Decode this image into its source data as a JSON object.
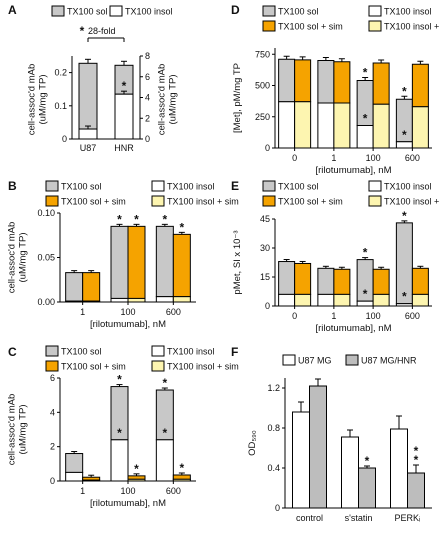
{
  "colors": {
    "sol": "#c8c8c8",
    "insol": "#ffffff",
    "sol_sim": "#f5a300",
    "insol_sim": "#fdf5b0",
    "u87": "#ffffff",
    "hnr": "#bdbdbd"
  },
  "chart_data": [
    {
      "panel": "A",
      "type": "bar",
      "stacked": true,
      "legend": [
        "TX100 sol",
        "TX100 insol"
      ],
      "categories": [
        "U87",
        "HNR"
      ],
      "ylabel": "cell-assoc'd mAb\n(uM/mg TP)",
      "ylim": [
        0,
        0.25
      ],
      "yticks": [
        "0",
        "0.1",
        "0.2"
      ],
      "y2label": "cell-assoc'd mAb\n(uM/mg TP)",
      "y2lim": [
        0,
        8
      ],
      "y2ticks": [
        "0",
        "2",
        "4",
        "6",
        "8"
      ],
      "annotation": "28-fold",
      "bars": [
        {
          "category": "U87",
          "insol": 0.03,
          "total": 0.228
        },
        {
          "category": "HNR",
          "insol": 0.135,
          "total": 0.222,
          "star": "*"
        }
      ]
    },
    {
      "panel": "B",
      "type": "bar",
      "stacked": true,
      "legend": [
        "TX100 sol",
        "TX100 insol",
        "TX100 sol + sim",
        "TX100 insol + sim"
      ],
      "categories": [
        "1",
        "100",
        "600"
      ],
      "xlabel": "[rilotumumab], nM",
      "ylabel": "cell-assoc'd mAb\n(uM/mg TP)",
      "ylim": [
        0,
        0.1
      ],
      "yticks": [
        "0.00",
        "0.05",
        "0.10"
      ],
      "groups": [
        {
          "category": "1",
          "ctrl": {
            "insol": 0.001,
            "total": 0.033
          },
          "sim": {
            "insol": 0.001,
            "total": 0.033
          }
        },
        {
          "category": "100",
          "ctrl": {
            "insol": 0.004,
            "total": 0.085,
            "star": "*"
          },
          "sim": {
            "insol": 0.004,
            "total": 0.085,
            "star": "*"
          }
        },
        {
          "category": "600",
          "ctrl": {
            "insol": 0.006,
            "total": 0.085,
            "star": "*"
          },
          "sim": {
            "insol": 0.006,
            "total": 0.076,
            "star": "*"
          }
        }
      ]
    },
    {
      "panel": "C",
      "type": "bar",
      "stacked": true,
      "legend": [
        "TX100 sol",
        "TX100 insol",
        "TX100 sol + sim",
        "TX100 insol + sim"
      ],
      "categories": [
        "1",
        "100",
        "600"
      ],
      "xlabel": "[rilotumumab], nM",
      "ylabel": "cell-assoc'd mAb\n(uM/mg TP)",
      "ylim": [
        0,
        6
      ],
      "yticks": [
        "0",
        "2",
        "4",
        "6"
      ],
      "groups": [
        {
          "category": "1",
          "ctrl": {
            "insol": 0.5,
            "total": 1.6
          },
          "sim": {
            "insol": 0.05,
            "total": 0.22
          }
        },
        {
          "category": "100",
          "ctrl": {
            "insol": 2.4,
            "total": 5.5,
            "star": "*",
            "star_in": "*"
          },
          "sim": {
            "insol": 0.1,
            "total": 0.3,
            "star": "*"
          }
        },
        {
          "category": "600",
          "ctrl": {
            "insol": 2.4,
            "total": 5.3,
            "star": "*",
            "star_in": "*"
          },
          "sim": {
            "insol": 0.1,
            "total": 0.35,
            "star": "*"
          }
        }
      ]
    },
    {
      "panel": "D",
      "type": "bar",
      "stacked": true,
      "legend": [
        "TX100 sol",
        "TX100 insol",
        "TX100 sol + sim",
        "TX100 insol + sim"
      ],
      "categories": [
        "0",
        "1",
        "100",
        "600"
      ],
      "xlabel": "[rilotumumab], nM",
      "ylabel": "[Met], pM/mg TP",
      "ylim": [
        0,
        800
      ],
      "yticks": [
        "0",
        "250",
        "500",
        "750"
      ],
      "groups": [
        {
          "category": "0",
          "ctrl": {
            "insol": 370,
            "total": 710
          },
          "sim": {
            "insol": 370,
            "total": 705
          }
        },
        {
          "category": "1",
          "ctrl": {
            "insol": 360,
            "total": 700
          },
          "sim": {
            "insol": 360,
            "total": 690
          }
        },
        {
          "category": "100",
          "ctrl": {
            "insol": 180,
            "total": 540,
            "star": "*",
            "star_in": "*"
          },
          "sim": {
            "insol": 350,
            "total": 680
          }
        },
        {
          "category": "600",
          "ctrl": {
            "insol": 50,
            "total": 390,
            "star": "*",
            "star_in": "*"
          },
          "sim": {
            "insol": 330,
            "total": 670
          }
        }
      ]
    },
    {
      "panel": "E",
      "type": "bar",
      "stacked": true,
      "legend": [
        "TX100 sol",
        "TX100 insol",
        "TX100 sol + sim",
        "TX100 insol + sim"
      ],
      "categories": [
        "0",
        "1",
        "100",
        "600"
      ],
      "xlabel": "[rilotumumab], nM",
      "ylabel": "pMet, SI x 10⁻³",
      "ylim": [
        0,
        45
      ],
      "yticks": [
        "0",
        "15",
        "30",
        "45"
      ],
      "groups": [
        {
          "category": "0",
          "ctrl": {
            "insol": 6,
            "total": 23
          },
          "sim": {
            "insol": 6,
            "total": 22
          }
        },
        {
          "category": "1",
          "ctrl": {
            "insol": 6,
            "total": 19.5
          },
          "sim": {
            "insol": 6,
            "total": 19
          }
        },
        {
          "category": "100",
          "ctrl": {
            "insol": 2.5,
            "total": 24,
            "star": "*",
            "star_in": "*"
          },
          "sim": {
            "insol": 6,
            "total": 19
          }
        },
        {
          "category": "600",
          "ctrl": {
            "insol": 1.2,
            "total": 43,
            "star": "*",
            "star_in": "*"
          },
          "sim": {
            "insol": 6,
            "total": 19.5
          }
        }
      ]
    },
    {
      "panel": "F",
      "type": "bar",
      "legend": [
        "U87 MG",
        "U87 MG/HNR"
      ],
      "categories": [
        "control",
        "s'statin",
        "PERKᵢ"
      ],
      "ylabel": "OD₅₉₀",
      "ylim": [
        0,
        1.3
      ],
      "yticks": [
        "0",
        "0.4",
        "0.8",
        "1.2"
      ],
      "series": [
        {
          "name": "U87 MG",
          "values": [
            0.96,
            0.71,
            0.79
          ],
          "err": [
            0.1,
            0.07,
            0.13
          ]
        },
        {
          "name": "U87 MG/HNR",
          "values": [
            1.22,
            0.4,
            0.35
          ],
          "err": [
            0.07,
            0.02,
            0.08
          ],
          "stars": [
            "",
            "*",
            "**"
          ]
        }
      ]
    }
  ]
}
